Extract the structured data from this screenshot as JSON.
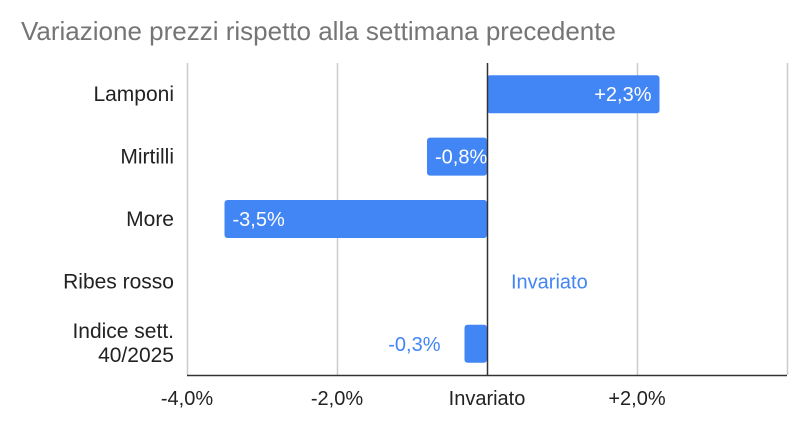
{
  "chart_data": {
    "type": "bar",
    "orientation": "horizontal",
    "title": "Variazione prezzi rispetto alla settimana precedente",
    "categories": [
      "Lamponi",
      "Mirtilli",
      "More",
      "Ribes rosso",
      "Indice sett. 40/2025"
    ],
    "values": [
      2.3,
      -0.8,
      -3.5,
      0.0,
      -0.3
    ],
    "data_labels": [
      "+2,3%",
      "-0,8%",
      "-3,5%",
      "Invariato",
      "-0,3%"
    ],
    "xlim": [
      -4.0,
      4.0
    ],
    "x_ticks": [
      {
        "value": -4.0,
        "label": "-4,0%"
      },
      {
        "value": -2.0,
        "label": "-2,0%"
      },
      {
        "value": 0.0,
        "label": "Invariato"
      },
      {
        "value": 2.0,
        "label": "+2,0%"
      }
    ],
    "grid": true,
    "legend": "none",
    "bar_color": "#4285f4",
    "zero_line_color": "#333333",
    "grid_color": "#cccccc",
    "xlabel": "",
    "ylabel": ""
  }
}
